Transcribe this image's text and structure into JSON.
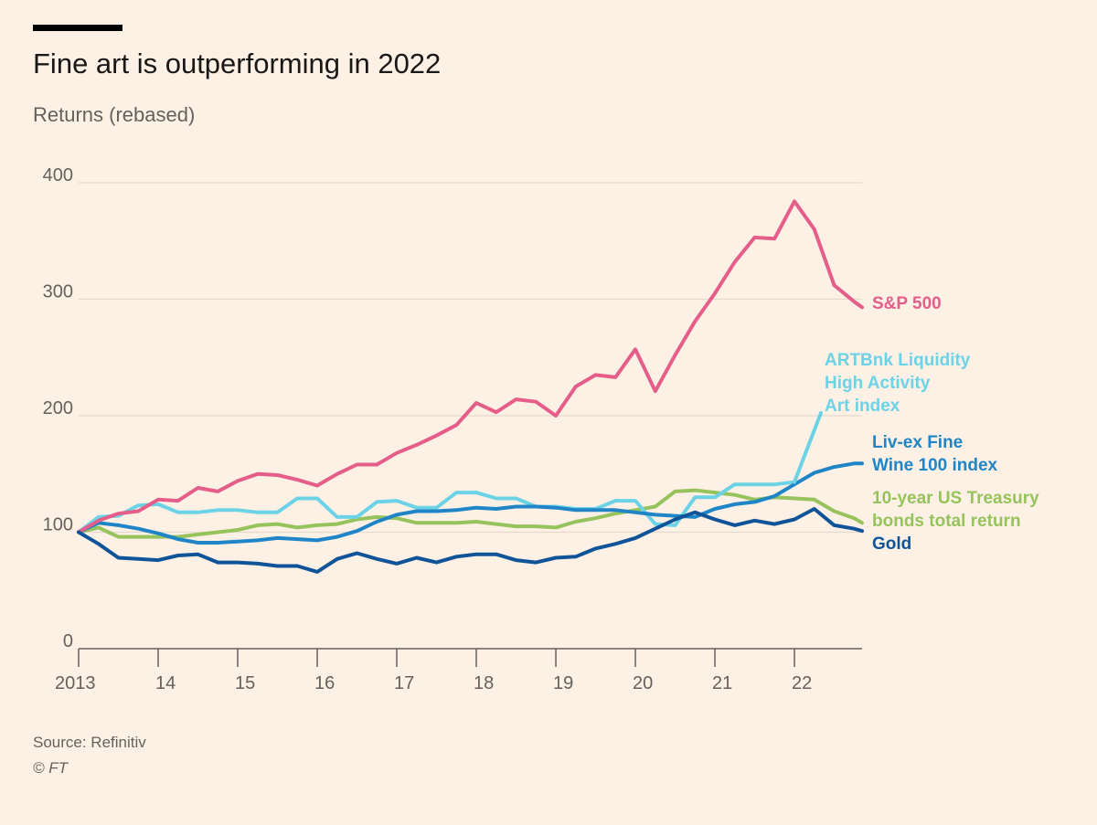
{
  "header": {
    "title": "Fine art is outperforming in 2022",
    "subtitle": "Returns (rebased)"
  },
  "footer": {
    "source": "Source: Refinitiv",
    "copyright": "© FT"
  },
  "chart_data": {
    "type": "line",
    "title": "Fine art is outperforming in 2022",
    "subtitle": "Returns (rebased)",
    "xlabel": "",
    "ylabel": "",
    "xlim": [
      2013,
      2022.85
    ],
    "ylim": [
      0,
      400
    ],
    "y_ticks": [
      0,
      100,
      200,
      300,
      400
    ],
    "x_ticks": [
      {
        "value": 2013,
        "label": "2013"
      },
      {
        "value": 2014,
        "label": "14"
      },
      {
        "value": 2015,
        "label": "15"
      },
      {
        "value": 2016,
        "label": "16"
      },
      {
        "value": 2017,
        "label": "17"
      },
      {
        "value": 2018,
        "label": "18"
      },
      {
        "value": 2019,
        "label": "19"
      },
      {
        "value": 2020,
        "label": "20"
      },
      {
        "value": 2021,
        "label": "21"
      },
      {
        "value": 2022,
        "label": "22"
      }
    ],
    "grid": true,
    "series": [
      {
        "name": "10-year US Treasury bonds total return",
        "label_lines": [
          "10-year US Treasury",
          "bonds total return"
        ],
        "color": "#96C35C",
        "points": [
          [
            2013,
            100
          ],
          [
            2013.25,
            104
          ],
          [
            2013.5,
            96
          ],
          [
            2013.75,
            96
          ],
          [
            2014,
            96
          ],
          [
            2014.25,
            96
          ],
          [
            2014.5,
            98
          ],
          [
            2014.75,
            100
          ],
          [
            2015,
            102
          ],
          [
            2015.25,
            106
          ],
          [
            2015.5,
            107
          ],
          [
            2015.75,
            104
          ],
          [
            2016,
            106
          ],
          [
            2016.25,
            107
          ],
          [
            2016.5,
            111
          ],
          [
            2016.75,
            113
          ],
          [
            2017,
            112
          ],
          [
            2017.25,
            108
          ],
          [
            2017.5,
            108
          ],
          [
            2017.75,
            108
          ],
          [
            2018,
            109
          ],
          [
            2018.25,
            107
          ],
          [
            2018.5,
            105
          ],
          [
            2018.75,
            105
          ],
          [
            2019,
            104
          ],
          [
            2019.25,
            109
          ],
          [
            2019.5,
            112
          ],
          [
            2019.75,
            116
          ],
          [
            2020,
            119
          ],
          [
            2020.25,
            122
          ],
          [
            2020.5,
            135
          ],
          [
            2020.75,
            136
          ],
          [
            2021,
            134
          ],
          [
            2021.25,
            132
          ],
          [
            2021.5,
            128
          ],
          [
            2021.75,
            130
          ],
          [
            2022,
            129
          ],
          [
            2022.25,
            128
          ],
          [
            2022.5,
            118
          ],
          [
            2022.75,
            112
          ],
          [
            2022.85,
            108
          ]
        ]
      },
      {
        "name": "ARTBnk Liquidity High Activity Art index",
        "label_lines": [
          "ARTBnk Liquidity",
          "High Activity",
          "Art index"
        ],
        "color": "#6CD3E6",
        "points": [
          [
            2013,
            100
          ],
          [
            2013.25,
            113
          ],
          [
            2013.5,
            114
          ],
          [
            2013.75,
            123
          ],
          [
            2014,
            124
          ],
          [
            2014.25,
            117
          ],
          [
            2014.5,
            117
          ],
          [
            2014.75,
            119
          ],
          [
            2015,
            119
          ],
          [
            2015.25,
            117
          ],
          [
            2015.5,
            117
          ],
          [
            2015.75,
            129
          ],
          [
            2016,
            129
          ],
          [
            2016.25,
            113
          ],
          [
            2016.5,
            113
          ],
          [
            2016.75,
            126
          ],
          [
            2017,
            127
          ],
          [
            2017.25,
            121
          ],
          [
            2017.5,
            121
          ],
          [
            2017.75,
            134
          ],
          [
            2018,
            134
          ],
          [
            2018.25,
            129
          ],
          [
            2018.5,
            129
          ],
          [
            2018.75,
            122
          ],
          [
            2019,
            122
          ],
          [
            2019.25,
            120
          ],
          [
            2019.5,
            120
          ],
          [
            2019.75,
            127
          ],
          [
            2020,
            127
          ],
          [
            2020.25,
            107
          ],
          [
            2020.5,
            106
          ],
          [
            2020.75,
            130
          ],
          [
            2021,
            130
          ],
          [
            2021.25,
            141
          ],
          [
            2021.5,
            141
          ],
          [
            2021.75,
            141
          ],
          [
            2022,
            143
          ]
        ]
      },
      {
        "name": "Liv-ex Fine Wine 100 index",
        "label_lines": [
          "Liv-ex Fine",
          "Wine 100 index"
        ],
        "color": "#1F85C7",
        "points": [
          [
            2013,
            100
          ],
          [
            2013.25,
            108
          ],
          [
            2013.5,
            106
          ],
          [
            2013.75,
            103
          ],
          [
            2014,
            99
          ],
          [
            2014.25,
            94
          ],
          [
            2014.5,
            91
          ],
          [
            2014.75,
            91
          ],
          [
            2015,
            92
          ],
          [
            2015.25,
            93
          ],
          [
            2015.5,
            95
          ],
          [
            2015.75,
            94
          ],
          [
            2016,
            93
          ],
          [
            2016.25,
            96
          ],
          [
            2016.5,
            101
          ],
          [
            2016.75,
            109
          ],
          [
            2017,
            115
          ],
          [
            2017.25,
            118
          ],
          [
            2017.5,
            118
          ],
          [
            2017.75,
            119
          ],
          [
            2018,
            121
          ],
          [
            2018.25,
            120
          ],
          [
            2018.5,
            122
          ],
          [
            2018.75,
            122
          ],
          [
            2019,
            121
          ],
          [
            2019.25,
            119
          ],
          [
            2019.5,
            119
          ],
          [
            2019.75,
            119
          ],
          [
            2020,
            117
          ],
          [
            2020.25,
            115
          ],
          [
            2020.5,
            114
          ],
          [
            2020.75,
            113
          ],
          [
            2021,
            120
          ],
          [
            2021.25,
            124
          ],
          [
            2021.5,
            126
          ],
          [
            2021.75,
            131
          ],
          [
            2022,
            141
          ],
          [
            2022.25,
            151
          ],
          [
            2022.5,
            156
          ],
          [
            2022.75,
            159
          ],
          [
            2022.85,
            159
          ]
        ]
      },
      {
        "name": "S&P 500",
        "label_lines": [
          "S&P 500"
        ],
        "color": "#E55E8A",
        "points": [
          [
            2013,
            100
          ],
          [
            2013.25,
            110
          ],
          [
            2013.5,
            116
          ],
          [
            2013.75,
            118
          ],
          [
            2014,
            128
          ],
          [
            2014.25,
            127
          ],
          [
            2014.5,
            138
          ],
          [
            2014.75,
            135
          ],
          [
            2015,
            144
          ],
          [
            2015.25,
            150
          ],
          [
            2015.5,
            149
          ],
          [
            2015.75,
            145
          ],
          [
            2016,
            140
          ],
          [
            2016.25,
            150
          ],
          [
            2016.5,
            158
          ],
          [
            2016.75,
            158
          ],
          [
            2017,
            168
          ],
          [
            2017.25,
            175
          ],
          [
            2017.5,
            183
          ],
          [
            2017.75,
            192
          ],
          [
            2018,
            211
          ],
          [
            2018.25,
            203
          ],
          [
            2018.5,
            214
          ],
          [
            2018.75,
            212
          ],
          [
            2019,
            200
          ],
          [
            2019.25,
            225
          ],
          [
            2019.5,
            235
          ],
          [
            2019.75,
            233
          ],
          [
            2020,
            257
          ],
          [
            2020.25,
            221
          ],
          [
            2020.5,
            252
          ],
          [
            2020.75,
            281
          ],
          [
            2021,
            305
          ],
          [
            2021.25,
            332
          ],
          [
            2021.5,
            353
          ],
          [
            2021.75,
            352
          ],
          [
            2022,
            384
          ],
          [
            2022.25,
            360
          ],
          [
            2022.5,
            312
          ],
          [
            2022.75,
            298
          ],
          [
            2022.85,
            293
          ]
        ]
      },
      {
        "name": "Gold",
        "label_lines": [
          "Gold"
        ],
        "color": "#0F5499",
        "points": [
          [
            2013,
            100
          ],
          [
            2013.25,
            90
          ],
          [
            2013.5,
            78
          ],
          [
            2013.75,
            77
          ],
          [
            2014,
            76
          ],
          [
            2014.25,
            80
          ],
          [
            2014.5,
            81
          ],
          [
            2014.75,
            74
          ],
          [
            2015,
            74
          ],
          [
            2015.25,
            73
          ],
          [
            2015.5,
            71
          ],
          [
            2015.75,
            71
          ],
          [
            2016,
            66
          ],
          [
            2016.25,
            77
          ],
          [
            2016.5,
            82
          ],
          [
            2016.75,
            77
          ],
          [
            2017,
            73
          ],
          [
            2017.25,
            78
          ],
          [
            2017.5,
            74
          ],
          [
            2017.75,
            79
          ],
          [
            2018,
            81
          ],
          [
            2018.25,
            81
          ],
          [
            2018.5,
            76
          ],
          [
            2018.75,
            74
          ],
          [
            2019,
            78
          ],
          [
            2019.25,
            79
          ],
          [
            2019.5,
            86
          ],
          [
            2019.75,
            90
          ],
          [
            2020,
            95
          ],
          [
            2020.25,
            103
          ],
          [
            2020.5,
            111
          ],
          [
            2020.75,
            117
          ],
          [
            2021,
            111
          ],
          [
            2021.25,
            106
          ],
          [
            2021.5,
            110
          ],
          [
            2021.75,
            107
          ],
          [
            2022,
            111
          ],
          [
            2022.25,
            120
          ],
          [
            2022.5,
            106
          ],
          [
            2022.75,
            103
          ],
          [
            2022.85,
            101
          ]
        ]
      }
    ]
  }
}
